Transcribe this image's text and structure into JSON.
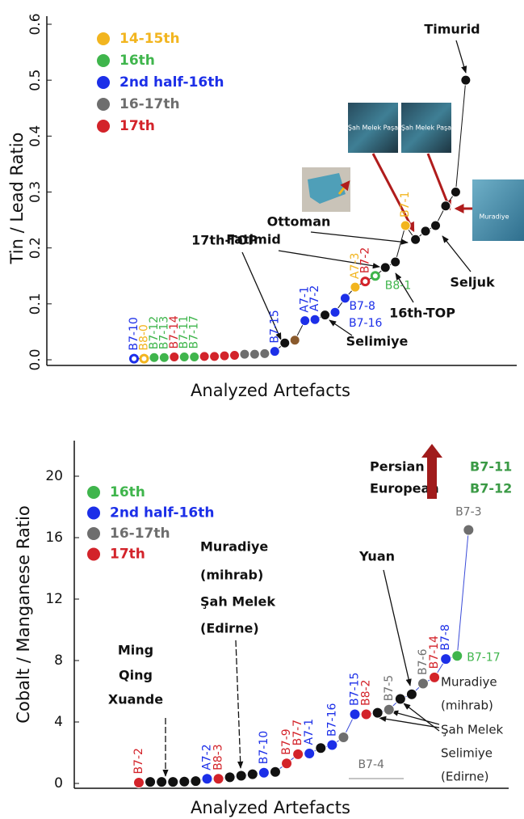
{
  "chart_data": [
    {
      "type": "line",
      "y_label": "Tin / Lead Ratio",
      "x_label": "Analyzed Artefacts",
      "ylim": [
        0,
        0.6
      ],
      "yticks": [
        {
          "value": 0,
          "label": "0.0"
        },
        0.1,
        0.2,
        0.3,
        0.4,
        0.5,
        0.6
      ],
      "line_color": "#111111",
      "legend": [
        {
          "name": "14-15th",
          "color": "#f2b51f"
        },
        {
          "name": "16th",
          "color": "#3fb54c"
        },
        {
          "name": "2nd half-16th",
          "color": "#1c2fe8"
        },
        {
          "name": "16-17th",
          "color": "#6e6e6e"
        },
        {
          "name": "17th",
          "color": "#d3232a"
        }
      ],
      "categories": [
        "B7-10",
        "B8-0",
        "B7-12",
        "B7-13",
        "B7-14",
        "B7-11",
        "B7-17",
        null,
        null,
        null,
        null,
        null,
        null,
        null,
        "B7-15",
        null,
        null,
        "A7-1",
        "A7-2",
        null,
        "B7-16",
        "B7-8",
        "A7-3",
        "B7-2",
        "B8-1",
        null,
        null,
        "B7-1",
        null,
        null,
        null,
        null,
        null,
        null
      ],
      "values": [
        0.002,
        0.002,
        0.004,
        0.004,
        0.005,
        0.005,
        0.005,
        0.006,
        0.006,
        0.007,
        0.008,
        0.01,
        0.01,
        0.011,
        0.015,
        0.03,
        0.035,
        0.07,
        0.072,
        0.08,
        0.085,
        0.11,
        0.13,
        0.14,
        0.15,
        0.165,
        0.175,
        0.24,
        0.215,
        0.23,
        0.24,
        0.275,
        0.3,
        0.5
      ],
      "point_colors": [
        "#1c2fe8",
        "#f2b51f",
        "#3fb54c",
        "#3fb54c",
        "#d3232a",
        "#3fb54c",
        "#3fb54c",
        "#d3232a",
        "#d3232a",
        "#d3232a",
        "#d3232a",
        "#6e6e6e",
        "#6e6e6e",
        "#6e6e6e",
        "#1c2fe8",
        "#111111",
        "#8a5a2c",
        "#1c2fe8",
        "#1c2fe8",
        "#111111",
        "#1c2fe8",
        "#1c2fe8",
        "#f2b51f",
        "#d3232a",
        "#3fb54c",
        "#111111",
        "#111111",
        "#f2b51f",
        "#111111",
        "#111111",
        "#111111",
        "#111111",
        "#111111",
        "#111111"
      ],
      "hollow": [
        true,
        true,
        false,
        false,
        false,
        false,
        false,
        false,
        false,
        false,
        false,
        false,
        false,
        false,
        false,
        false,
        false,
        false,
        false,
        false,
        false,
        false,
        false,
        true,
        true,
        false,
        false,
        false,
        false,
        false,
        false,
        false,
        false,
        false
      ],
      "annotations": [
        "Timurid",
        "Ottoman",
        "Fatimid",
        "17th-TOP",
        "Seljuk",
        "16th-TOP",
        "Selimiye"
      ],
      "image_captions": [
        "Şah Melek Paşa",
        "Şah Melek Paşa",
        "Muradiye"
      ]
    },
    {
      "type": "line",
      "y_label": "Cobalt / Manganese Ratio",
      "x_label": "Analyzed Artefacts",
      "ylim": [
        0,
        22
      ],
      "yticks": [
        0,
        4,
        8,
        12,
        16,
        20
      ],
      "line_color": "#3a4bd8",
      "legend": [
        {
          "name": "16th",
          "color": "#3fb54c"
        },
        {
          "name": "2nd half-16th",
          "color": "#1c2fe8"
        },
        {
          "name": "16-17th",
          "color": "#6e6e6e"
        },
        {
          "name": "17th",
          "color": "#d3232a"
        }
      ],
      "categories": [
        "B7-2",
        null,
        null,
        null,
        null,
        null,
        "A7-2",
        "B8-3",
        null,
        null,
        null,
        "B7-10",
        null,
        "B7-9",
        "B7-7",
        "A7-1",
        null,
        "B7-16",
        "B7-4",
        "B7-15",
        "B8-2",
        null,
        "B7-5",
        null,
        null,
        "B7-6",
        "B7-14",
        "B7-8",
        "B7-17",
        "B7-3"
      ],
      "values": [
        0.05,
        0.1,
        0.1,
        0.1,
        0.12,
        0.15,
        0.3,
        0.3,
        0.4,
        0.5,
        0.6,
        0.7,
        0.75,
        1.3,
        1.9,
        1.95,
        2.3,
        2.5,
        3.0,
        4.5,
        4.5,
        4.6,
        4.8,
        5.5,
        5.8,
        6.5,
        6.9,
        8.1,
        8.3,
        16.5
      ],
      "point_colors": [
        "#d3232a",
        "#111111",
        "#111111",
        "#111111",
        "#111111",
        "#111111",
        "#1c2fe8",
        "#d3232a",
        "#111111",
        "#111111",
        "#111111",
        "#1c2fe8",
        "#111111",
        "#d3232a",
        "#d3232a",
        "#1c2fe8",
        "#111111",
        "#1c2fe8",
        "#6e6e6e",
        "#1c2fe8",
        "#d3232a",
        "#111111",
        "#6e6e6e",
        "#111111",
        "#111111",
        "#6e6e6e",
        "#d3232a",
        "#1c2fe8",
        "#3fb54c",
        "#6e6e6e"
      ],
      "annotations": [
        "Ming",
        "Qing",
        "Xuande",
        "Muradiye",
        "(mihrab)",
        "Şah Melek",
        "(Edirne)",
        "Yuan",
        "Persian",
        "European",
        "B7-11",
        "B7-12",
        "Muradiye",
        "(mihrab)",
        "Şah Melek",
        "Selimiye",
        "(Edirne)"
      ]
    }
  ]
}
